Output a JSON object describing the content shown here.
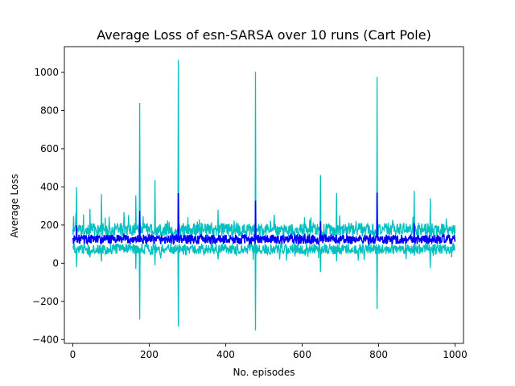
{
  "chart_data": {
    "type": "line",
    "title": "Average Loss of esn-SARSA over 10 runs (Cart Pole)",
    "xlabel": "No. episodes",
    "ylabel": "Average Loss",
    "xlim": [
      -22,
      1022
    ],
    "ylim": [
      -420,
      1135
    ],
    "xticks": [
      0,
      200,
      400,
      600,
      800,
      1000
    ],
    "yticks": [
      -400,
      -200,
      0,
      200,
      400,
      600,
      800,
      1000
    ],
    "series": [
      {
        "role": "band",
        "color": "#00bfbf",
        "episodes": 1000,
        "upper_typical": 175,
        "lower_typical": 75,
        "spikes": [
          {
            "x": 10,
            "high": 398,
            "low": -20
          },
          {
            "x": 45,
            "high": 285,
            "low": 30
          },
          {
            "x": 75,
            "high": 362,
            "low": 10
          },
          {
            "x": 165,
            "high": 355,
            "low": -30
          },
          {
            "x": 175,
            "high": 840,
            "low": -295
          },
          {
            "x": 215,
            "high": 436,
            "low": -10
          },
          {
            "x": 276,
            "high": 1065,
            "low": -332
          },
          {
            "x": 380,
            "high": 280,
            "low": 20
          },
          {
            "x": 478,
            "high": 1004,
            "low": -352
          },
          {
            "x": 648,
            "high": 462,
            "low": -45
          },
          {
            "x": 690,
            "high": 368,
            "low": 10
          },
          {
            "x": 796,
            "high": 976,
            "low": -240
          },
          {
            "x": 893,
            "high": 380,
            "low": 40
          },
          {
            "x": 935,
            "high": 340,
            "low": -25
          }
        ]
      },
      {
        "role": "mean",
        "color": "#0000ff",
        "episodes": 1000,
        "center": 125,
        "spikes": [
          {
            "x": 10,
            "value": 200
          },
          {
            "x": 175,
            "value": 275
          },
          {
            "x": 276,
            "value": 368
          },
          {
            "x": 478,
            "value": 328
          },
          {
            "x": 648,
            "value": 220
          },
          {
            "x": 796,
            "value": 370
          },
          {
            "x": 893,
            "value": 210
          }
        ]
      }
    ],
    "grid": false,
    "legend": "none"
  }
}
